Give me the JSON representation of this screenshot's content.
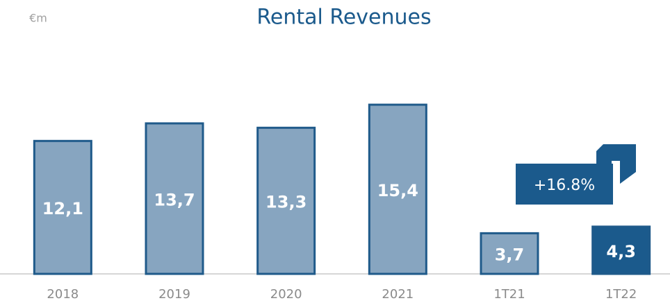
{
  "chart_data": {
    "type": "bar",
    "title": "Rental Revenues",
    "unit": "€m",
    "categories": [
      "2018",
      "2019",
      "2020",
      "2021",
      "1T21",
      "1T22"
    ],
    "values": [
      12.1,
      13.7,
      13.3,
      15.4,
      3.7,
      4.3
    ],
    "value_labels": [
      "12,1",
      "13,7",
      "13,3",
      "15,4",
      "3,7",
      "4,3"
    ],
    "colors": [
      "#87a5c0",
      "#87a5c0",
      "#87a5c0",
      "#87a5c0",
      "#87a5c0",
      "#1b5a8c"
    ],
    "edge_color": "#1f5a8a",
    "ylim": [
      0,
      16
    ],
    "annotation": "+16.8%"
  }
}
